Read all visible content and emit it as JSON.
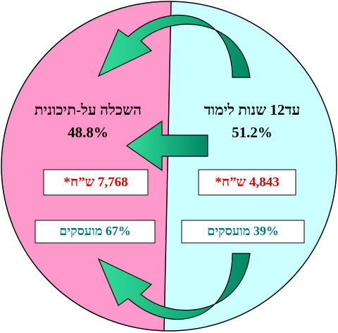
{
  "left": {
    "heading": "השכלה על-תיכונית",
    "percent": "48.8%",
    "income": "7,768 ש”ח*",
    "employed": "67% מועסקים"
  },
  "right": {
    "heading": "עד12 שנות לימוד",
    "percent": "51.2%",
    "income": "4,843 ש”ח*",
    "employed": "39% מועסקים"
  }
}
